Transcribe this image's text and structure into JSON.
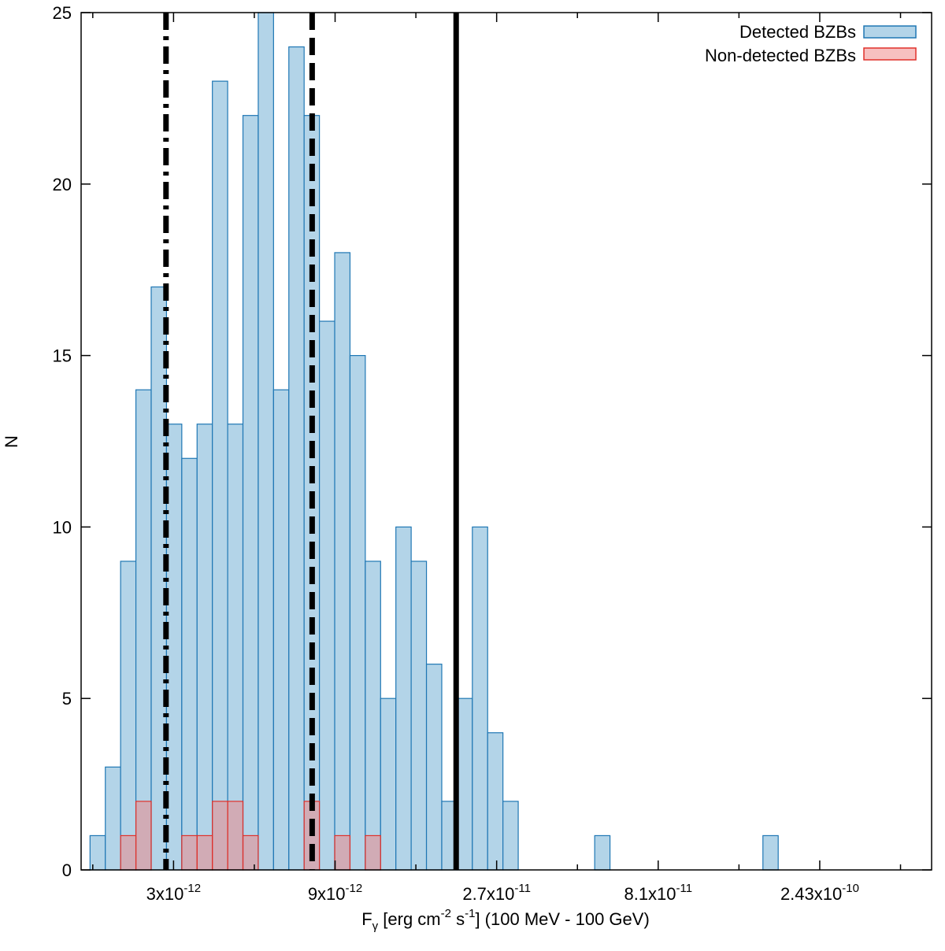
{
  "chart_data": {
    "type": "bar",
    "title": "",
    "xlabel": {
      "main": "F",
      "sub": "γ",
      "p1": " [erg cm",
      "sup1": "-2",
      "p2": " s",
      "sup2": "-1",
      "p3": "] (100 MeV - 100 GeV)"
    },
    "ylabel": "N",
    "xscale": "log",
    "xlim": [
      1.6e-12,
      5.2e-10
    ],
    "ylim": [
      0,
      25
    ],
    "yticks": [
      0,
      5,
      10,
      15,
      20,
      25
    ],
    "xticks": [
      {
        "value": 3e-12,
        "mantissa": "3x10",
        "exp": "-12"
      },
      {
        "value": 9e-12,
        "mantissa": "9x10",
        "exp": "-12"
      },
      {
        "value": 2.7e-11,
        "mantissa": "2.7x10",
        "exp": "-11"
      },
      {
        "value": 8.1e-11,
        "mantissa": "8.1x10",
        "exp": "-11"
      },
      {
        "value": 2.43e-10,
        "mantissa": "2.43x10",
        "exp": "-10"
      }
    ],
    "bin_edges_start": 1.7e-12,
    "bin_factor": 1.1096,
    "legend_position": "top-right",
    "series": [
      {
        "name": "Detected BZBs",
        "fill": "#b3d4e8",
        "stroke": "#1f77b4",
        "values": [
          1,
          3,
          9,
          14,
          17,
          13,
          12,
          13,
          23,
          13,
          22,
          25,
          14,
          24,
          22,
          16,
          18,
          15,
          9,
          5,
          10,
          9,
          6,
          2,
          5,
          10,
          4,
          2,
          0,
          0,
          0,
          0,
          0,
          1,
          0,
          0,
          0,
          0,
          0,
          0,
          0,
          0,
          0,
          0,
          1
        ]
      },
      {
        "name": "Non-detected BZBs",
        "fill": "rgba(240,130,130,0.5)",
        "stroke": "#e0302a",
        "values": [
          0,
          0,
          1,
          2,
          0,
          0,
          1,
          1,
          2,
          2,
          1,
          0,
          0,
          0,
          2,
          0,
          1,
          0,
          1,
          0,
          0,
          0,
          0,
          0,
          0,
          0,
          0,
          0,
          0,
          0,
          0,
          0,
          0,
          0,
          0,
          0,
          0,
          0,
          0,
          0,
          0,
          0,
          0,
          0,
          0
        ]
      }
    ],
    "vertical_lines": [
      {
        "name": "dash-dot",
        "x": 2.85e-12,
        "dash": "22,8,5,8"
      },
      {
        "name": "dashed",
        "x": 7.7e-12,
        "dash": "22,10"
      },
      {
        "name": "solid",
        "x": 2.05e-11,
        "dash": ""
      }
    ]
  }
}
